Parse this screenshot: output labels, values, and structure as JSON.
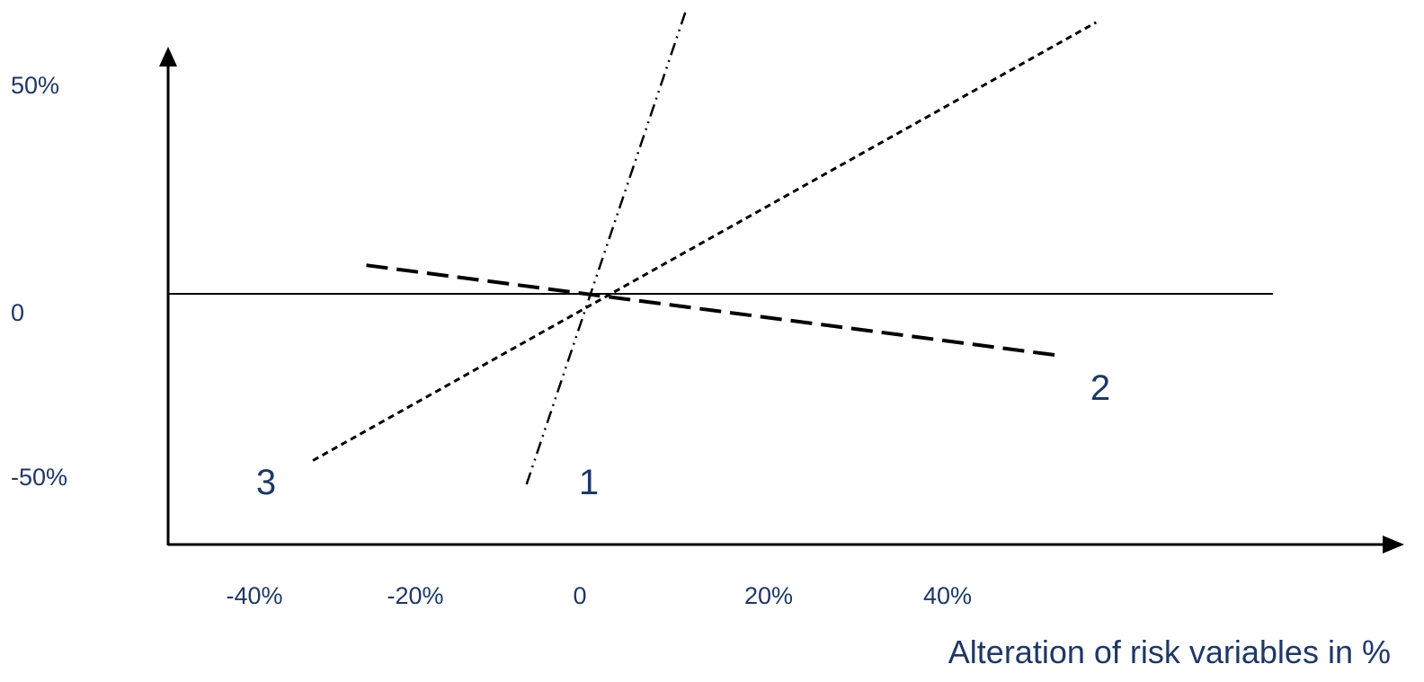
{
  "chart_data": {
    "type": "line",
    "title": "",
    "xlabel": "Alteration of risk variables in %",
    "ylabel": "",
    "x_ticks": [
      "-40%",
      "-20%",
      "0",
      "20%",
      "40%"
    ],
    "y_ticks": [
      "50%",
      "0",
      "-50%"
    ],
    "xlim": [
      -50,
      80
    ],
    "ylim": [
      -50,
      55
    ],
    "grid": false,
    "series": [
      {
        "name": "1",
        "style": "dash-dot-dot",
        "x": [
          -7,
          11
        ],
        "y": [
          -40,
          60
        ]
      },
      {
        "name": "2",
        "style": "long-dash",
        "x": [
          -25,
          53
        ],
        "y": [
          6,
          -13
        ]
      },
      {
        "name": "3",
        "style": "dotted",
        "x": [
          -31,
          57
        ],
        "y": [
          -35,
          57
        ]
      }
    ],
    "series_label_color": "#1f3864",
    "tick_color": "#1f3864",
    "axis_color": "#000000"
  }
}
